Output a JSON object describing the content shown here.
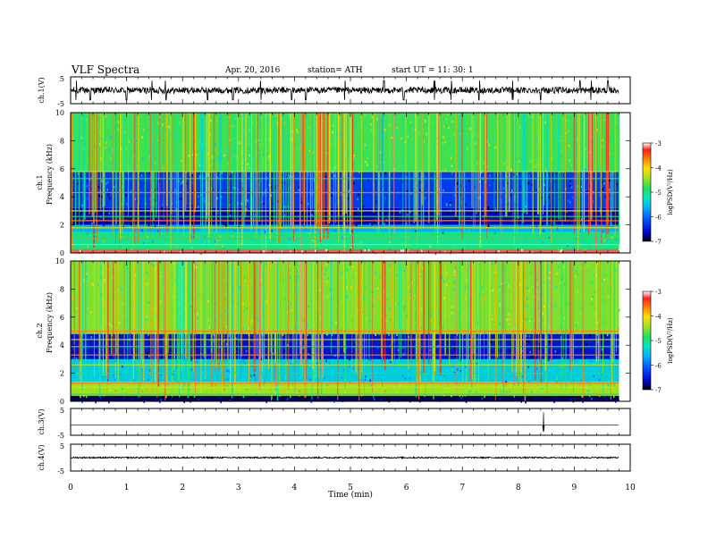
{
  "header": {
    "title": "VLF Spectra",
    "date": "Apr. 20, 2016",
    "station": "station= ATH",
    "start": "start  UT  =    11: 30: 1"
  },
  "chart_data": [
    {
      "type": "line",
      "name": "ch1-waveform",
      "ylabel": "ch.1(V)",
      "yticks": [
        "5",
        "-5"
      ],
      "ylim": [
        -5,
        5
      ],
      "xlim": [
        0,
        10
      ],
      "data_end_min": 9.8,
      "baseline_v": 0.0,
      "noise_amplitude_v": 1.2,
      "spikes_min": [
        0.1,
        0.35,
        1.0,
        1.45,
        1.7,
        2.45,
        2.9,
        3.4,
        3.95,
        4.2,
        4.9,
        5.6,
        5.95,
        6.5,
        6.8,
        7.3,
        7.9,
        8.4,
        9.1,
        9.3,
        9.6
      ]
    },
    {
      "type": "heatmap",
      "name": "ch1-spectrogram",
      "ylabel_channel": "ch.1",
      "ylabel": "Frequency  (kHz)",
      "yticks": [
        "0",
        "2",
        "4",
        "6",
        "8",
        "10"
      ],
      "ylim": [
        0,
        10
      ],
      "xlim": [
        0,
        10
      ],
      "data_end_min": 9.8,
      "colorbar": {
        "label": "logPSD(V²/Hz)",
        "range": [
          -7,
          -3
        ],
        "ticks": [
          "-3",
          "-4",
          "-5",
          "-6",
          "-7"
        ]
      },
      "band_structure_khz": [
        {
          "from": 0.0,
          "to": 0.3,
          "logpsd": -3.3
        },
        {
          "from": 0.3,
          "to": 1.5,
          "logpsd": -5.2
        },
        {
          "from": 1.5,
          "to": 2.0,
          "logpsd": -5.8
        },
        {
          "from": 2.0,
          "to": 3.2,
          "logpsd": -6.6
        },
        {
          "from": 3.2,
          "to": 5.8,
          "logpsd": -6.3
        },
        {
          "from": 5.8,
          "to": 10.0,
          "logpsd": -4.9
        }
      ],
      "tone_lines_khz": [
        0.3,
        0.6,
        1.0,
        1.3,
        1.8,
        2.3,
        2.6,
        3.0,
        4.3,
        5.3,
        5.8
      ]
    },
    {
      "type": "heatmap",
      "name": "ch2-spectrogram",
      "ylabel_channel": "ch.2",
      "ylabel": "Frequency  (kHz)",
      "yticks": [
        "0",
        "2",
        "4",
        "6",
        "8",
        "10"
      ],
      "ylim": [
        0,
        10
      ],
      "xlim": [
        0,
        10
      ],
      "data_end_min": 9.8,
      "colorbar": {
        "label": "logPSD(V²/Hz)",
        "range": [
          -7,
          -3
        ],
        "ticks": [
          "-3",
          "-4",
          "-5",
          "-6",
          "-7"
        ]
      },
      "band_structure_khz": [
        {
          "from": 0.0,
          "to": 0.4,
          "logpsd": -6.8
        },
        {
          "from": 0.4,
          "to": 1.4,
          "logpsd": -4.6
        },
        {
          "from": 1.4,
          "to": 3.0,
          "logpsd": -5.6
        },
        {
          "from": 3.0,
          "to": 4.8,
          "logpsd": -6.5
        },
        {
          "from": 4.8,
          "to": 10.0,
          "logpsd": -4.7
        }
      ],
      "tone_lines_khz": [
        0.5,
        1.0,
        1.3,
        2.0,
        2.6,
        3.3,
        3.9,
        4.4,
        5.0
      ]
    },
    {
      "type": "line",
      "name": "ch3-waveform",
      "ylabel": "ch.3(V)",
      "yticks": [
        "5",
        "-5"
      ],
      "ylim": [
        -5,
        5
      ],
      "xlim": [
        0,
        10
      ],
      "data_end_min": 9.8,
      "baseline_v": -1.2,
      "noise_amplitude_v": 0.02,
      "spikes_min": [
        8.45
      ]
    },
    {
      "type": "line",
      "name": "ch4-waveform",
      "ylabel": "ch.4(V)",
      "yticks": [
        "5",
        "-5"
      ],
      "ylim": [
        -5,
        5
      ],
      "xlim": [
        0,
        10
      ],
      "data_end_min": 9.8,
      "baseline_v": 0.0,
      "noise_amplitude_v": 0.25,
      "spikes_min": []
    }
  ],
  "xaxis": {
    "label": "Time  (min)",
    "ticks": [
      "0",
      "1",
      "2",
      "3",
      "4",
      "5",
      "6",
      "7",
      "8",
      "9",
      "10"
    ],
    "range": [
      0,
      10
    ]
  },
  "colors": {
    "spectral_scale": [
      "#000000",
      "#0000c0",
      "#0050ff",
      "#00b0ff",
      "#00e8c0",
      "#20e060",
      "#a0e020",
      "#ffe000",
      "#ff8000",
      "#ff2020",
      "#ffffff"
    ]
  }
}
